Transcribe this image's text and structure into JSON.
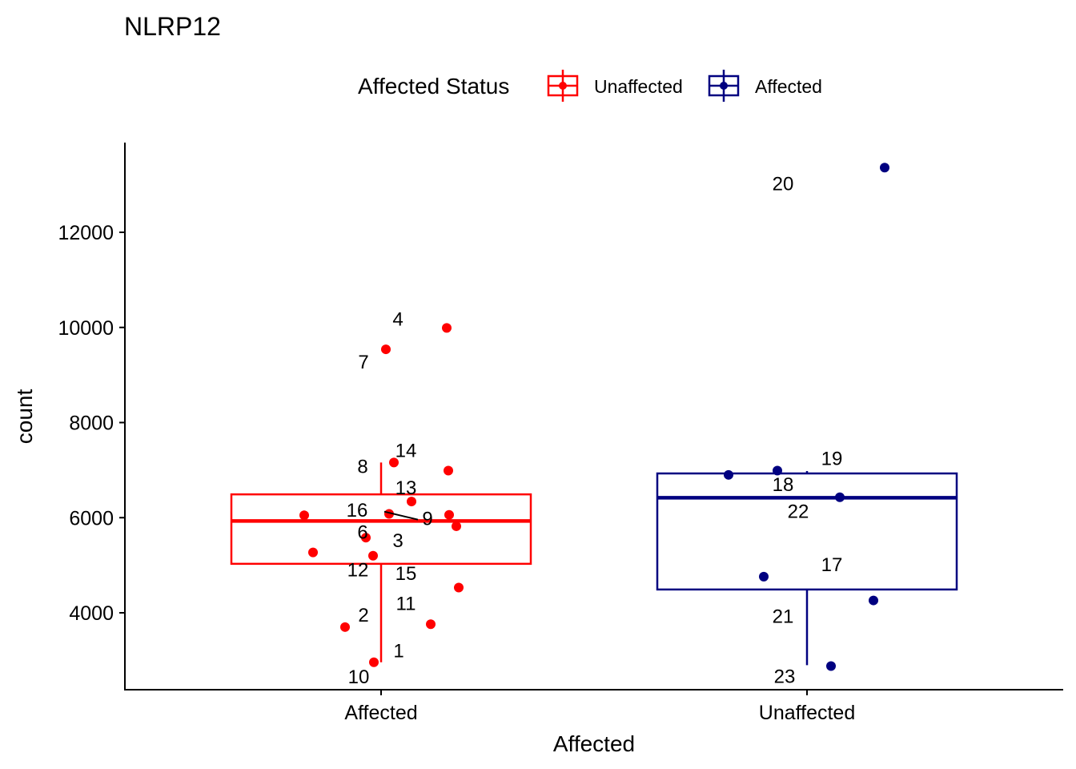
{
  "chart_data": {
    "type": "box",
    "title": "NLRP12",
    "xlabel": "Affected",
    "ylabel": "count",
    "ylim": [
      2400,
      13900
    ],
    "yticks": [
      4000,
      6000,
      8000,
      10000,
      12000
    ],
    "categories": [
      "Affected",
      "Unaffected"
    ],
    "legend": {
      "title": "Affected Status",
      "placement": "top",
      "entries": [
        {
          "name": "Unaffected",
          "color": "#FF0000"
        },
        {
          "name": "Affected",
          "color": "#000080"
        }
      ]
    },
    "boxes": [
      {
        "category": "Affected",
        "status": "Unaffected",
        "color": "#FF0000",
        "whisker_low": 2960,
        "q1": 5030,
        "median": 5930,
        "q3": 6490,
        "whisker_high": 7160
      },
      {
        "category": "Unaffected",
        "status": "Affected",
        "color": "#000080",
        "whisker_low": 2900,
        "q1": 4490,
        "median": 6420,
        "q3": 6930,
        "whisker_high": 6980
      }
    ],
    "points": [
      {
        "label": "1",
        "category": "Affected",
        "y": 3760
      },
      {
        "label": "2",
        "category": "Affected",
        "y": 3700
      },
      {
        "label": "3",
        "category": "Affected",
        "y": 5580
      },
      {
        "label": "4",
        "category": "Affected",
        "y": 9990
      },
      {
        "label": "6",
        "category": "Affected",
        "y": 6050
      },
      {
        "label": "7",
        "category": "Affected",
        "y": 9540
      },
      {
        "label": "8",
        "category": "Affected",
        "y": 6990
      },
      {
        "label": "9",
        "category": "Affected",
        "y": 6060
      },
      {
        "label": "10",
        "category": "Affected",
        "y": 2960
      },
      {
        "label": "11",
        "category": "Affected",
        "y": 4530
      },
      {
        "label": "12",
        "category": "Affected",
        "y": 5270
      },
      {
        "label": "13",
        "category": "Affected",
        "y": 6340
      },
      {
        "label": "14",
        "category": "Affected",
        "y": 7160
      },
      {
        "label": "15",
        "category": "Affected",
        "y": 5200
      },
      {
        "label": "16",
        "category": "Affected",
        "y": 5820
      },
      {
        "label": "17",
        "category": "Unaffected",
        "y": 4760
      },
      {
        "label": "18",
        "category": "Unaffected",
        "y": 6900
      },
      {
        "label": "19",
        "category": "Unaffected",
        "y": 6990
      },
      {
        "label": "20",
        "category": "Unaffected",
        "y": 13360
      },
      {
        "label": "21",
        "category": "Unaffected",
        "y": 4260
      },
      {
        "label": "22",
        "category": "Unaffected",
        "y": 6430
      },
      {
        "label": "23",
        "category": "Unaffected",
        "y": 2880
      }
    ],
    "unlabeled_points": [
      {
        "category": "Affected",
        "y": 6080
      }
    ]
  }
}
